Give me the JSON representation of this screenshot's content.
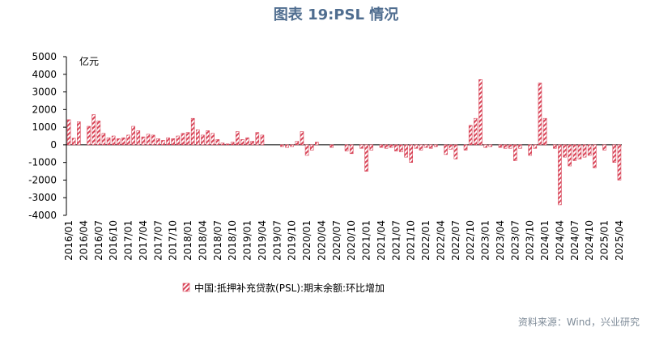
{
  "chart_data": {
    "type": "bar",
    "title": "图表 19:PSL 情况",
    "unit_label": "亿元",
    "source": "资料来源：Wind，兴业研究",
    "categories": [
      "2016/01",
      null,
      null,
      "2016/04",
      null,
      null,
      "2016/07",
      null,
      null,
      "2016/10",
      null,
      null,
      "2017/01",
      null,
      null,
      "2017/04",
      null,
      null,
      "2017/07",
      null,
      null,
      "2017/10",
      null,
      null,
      "2018/01",
      null,
      null,
      "2018/04",
      null,
      null,
      "2018/07",
      null,
      null,
      "2018/10",
      null,
      null,
      "2019/01",
      null,
      null,
      "2019/04",
      null,
      null,
      "2019/07",
      null,
      null,
      "2019/10",
      null,
      null,
      "2020/01",
      null,
      null,
      "2020/04",
      null,
      null,
      "2020/07",
      null,
      null,
      "2020/10",
      null,
      null,
      "2021/01",
      null,
      null,
      "2021/04",
      null,
      null,
      "2021/07",
      null,
      null,
      "2021/10",
      null,
      null,
      "2022/01",
      null,
      null,
      "2022/04",
      null,
      null,
      "2022/07",
      null,
      null,
      "2022/10",
      null,
      null,
      "2023/01",
      null,
      null,
      "2023/04",
      null,
      null,
      "2023/07",
      null,
      null,
      "2023/10",
      null,
      null,
      "2024/01",
      null,
      null,
      "2024/04",
      null,
      null,
      "2024/07",
      null,
      null,
      "2024/10",
      null,
      null,
      "2025/01",
      null,
      null,
      "2025/04"
    ],
    "series": [
      {
        "name": "中国:抵押补充贷款(PSL):期末余额:环比增加",
        "color": "#d9475a",
        "values": [
          1423,
          376,
          1307,
          0,
          1050,
          1714,
          1350,
          650,
          400,
          500,
          350,
          400,
          550,
          1050,
          800,
          450,
          600,
          550,
          350,
          250,
          400,
          350,
          500,
          650,
          700,
          1500,
          850,
          550,
          800,
          650,
          300,
          100,
          50,
          150,
          750,
          300,
          400,
          200,
          700,
          550,
          0,
          0,
          0,
          -100,
          -150,
          -100,
          200,
          750,
          -600,
          -300,
          150,
          0,
          0,
          -150,
          0,
          0,
          -350,
          -500,
          0,
          -200,
          -1500,
          -300,
          0,
          -150,
          -200,
          -150,
          -350,
          -400,
          -700,
          -1000,
          -200,
          -300,
          -150,
          -200,
          -100,
          0,
          -550,
          -250,
          -800,
          0,
          -300,
          1100,
          1500,
          3700,
          -150,
          -100,
          0,
          -150,
          -200,
          -200,
          -900,
          -200,
          0,
          -600,
          -200,
          3500,
          1500,
          0,
          -200,
          -3400,
          -700,
          -1200,
          -900,
          -800,
          -700,
          -600,
          -1300,
          0,
          -300,
          0,
          -1000,
          -2000
        ]
      }
    ],
    "ylim": [
      -4000,
      5000
    ],
    "yticks": [
      5000,
      4000,
      3000,
      2000,
      1000,
      0,
      -1000,
      -2000,
      -3000,
      -4000
    ]
  }
}
